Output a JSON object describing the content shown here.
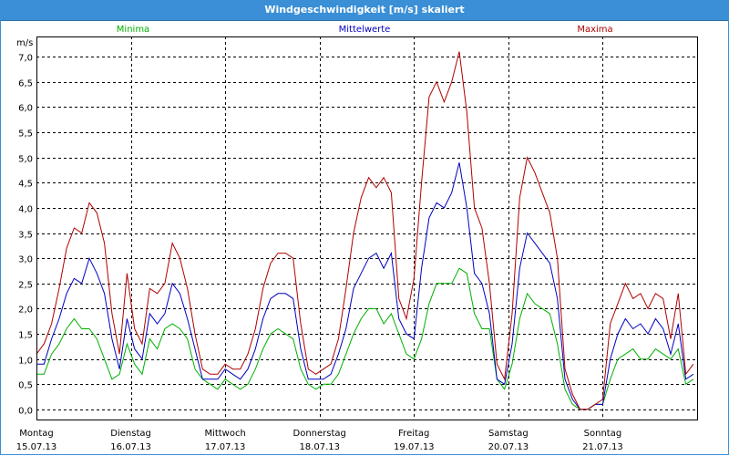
{
  "window": {
    "title": "Windgeschwindigkeit [m/s] skaliert"
  },
  "colors": {
    "minima": "#00b000",
    "mittelwerte": "#0000c0",
    "maxima": "#b00000",
    "grid": "#000000"
  },
  "chart_data": {
    "type": "line",
    "title": "Windgeschwindigkeit [m/s] skaliert",
    "ylabel": "m/s",
    "ylim": [
      -0.2,
      7.4
    ],
    "yticks": [
      0.0,
      0.5,
      1.0,
      1.5,
      2.0,
      2.5,
      3.0,
      3.5,
      4.0,
      4.5,
      5.0,
      5.5,
      6.0,
      6.5,
      7.0
    ],
    "ytick_labels": [
      "0,0",
      "0,5",
      "1,0",
      "1,5",
      "2,0",
      "2,5",
      "3,0",
      "3,5",
      "4,0",
      "4,5",
      "5,0",
      "5,5",
      "6,0",
      "6,5",
      "7,0"
    ],
    "grid": true,
    "legend_placement": "top",
    "xlim": [
      0,
      7
    ],
    "days": [
      {
        "weekday": "Montag",
        "date": "15.07.13"
      },
      {
        "weekday": "Dienstag",
        "date": "16.07.13"
      },
      {
        "weekday": "Mittwoch",
        "date": "17.07.13"
      },
      {
        "weekday": "Donnerstag",
        "date": "18.07.13"
      },
      {
        "weekday": "Freitag",
        "date": "19.07.13"
      },
      {
        "weekday": "Samstag",
        "date": "20.07.13"
      },
      {
        "weekday": "Sonntag",
        "date": "21.07.13"
      }
    ],
    "x": [
      0,
      0.08,
      0.16,
      0.24,
      0.32,
      0.4,
      0.48,
      0.56,
      0.64,
      0.72,
      0.8,
      0.88,
      0.96,
      1.04,
      1.12,
      1.2,
      1.28,
      1.36,
      1.44,
      1.52,
      1.6,
      1.68,
      1.76,
      1.84,
      1.92,
      2,
      2.08,
      2.16,
      2.24,
      2.32,
      2.4,
      2.48,
      2.56,
      2.64,
      2.72,
      2.8,
      2.88,
      2.96,
      3.04,
      3.12,
      3.2,
      3.28,
      3.36,
      3.44,
      3.52,
      3.6,
      3.68,
      3.76,
      3.84,
      3.92,
      4,
      4.08,
      4.16,
      4.24,
      4.32,
      4.4,
      4.48,
      4.56,
      4.64,
      4.72,
      4.8,
      4.88,
      4.96,
      5.04,
      5.12,
      5.2,
      5.28,
      5.36,
      5.44,
      5.52,
      5.6,
      5.68,
      5.76,
      5.84,
      5.92,
      6,
      6.08,
      6.16,
      6.24,
      6.32,
      6.4,
      6.48,
      6.56,
      6.64,
      6.72,
      6.8,
      6.88,
      6.96
    ],
    "series": [
      {
        "name": "Minima",
        "values": [
          0.7,
          0.7,
          1.1,
          1.3,
          1.6,
          1.8,
          1.6,
          1.6,
          1.4,
          1.0,
          0.6,
          0.7,
          1.3,
          0.9,
          0.7,
          1.4,
          1.2,
          1.6,
          1.7,
          1.6,
          1.4,
          0.8,
          0.6,
          0.5,
          0.4,
          0.6,
          0.5,
          0.4,
          0.5,
          0.8,
          1.2,
          1.5,
          1.6,
          1.5,
          1.4,
          0.8,
          0.5,
          0.4,
          0.5,
          0.5,
          0.7,
          1.1,
          1.5,
          1.8,
          2.0,
          2.0,
          1.7,
          1.9,
          1.5,
          1.1,
          1.0,
          1.4,
          2.1,
          2.5,
          2.5,
          2.5,
          2.8,
          2.7,
          1.9,
          1.6,
          1.6,
          0.6,
          0.4,
          0.9,
          1.8,
          2.3,
          2.1,
          2.0,
          1.9,
          1.3,
          0.4,
          0.1,
          0.0,
          0.0,
          0.1,
          0.1,
          0.6,
          1.0,
          1.1,
          1.2,
          1.0,
          1.0,
          1.2,
          1.1,
          1.0,
          1.2,
          0.5,
          0.6
        ]
      },
      {
        "name": "Mittelwerte",
        "values": [
          0.9,
          0.9,
          1.4,
          1.8,
          2.3,
          2.6,
          2.5,
          3.0,
          2.7,
          2.3,
          1.4,
          0.8,
          1.8,
          1.2,
          1.0,
          1.9,
          1.7,
          1.9,
          2.5,
          2.3,
          1.8,
          1.2,
          0.6,
          0.6,
          0.6,
          0.8,
          0.7,
          0.6,
          0.8,
          1.2,
          1.8,
          2.2,
          2.3,
          2.3,
          2.2,
          1.2,
          0.6,
          0.6,
          0.6,
          0.7,
          1.1,
          1.6,
          2.4,
          2.7,
          3.0,
          3.1,
          2.8,
          3.1,
          1.8,
          1.5,
          1.4,
          2.8,
          3.8,
          4.1,
          4.0,
          4.3,
          4.9,
          4.0,
          2.7,
          2.5,
          1.9,
          0.6,
          0.5,
          1.3,
          2.8,
          3.5,
          3.3,
          3.1,
          2.9,
          2.2,
          0.6,
          0.2,
          0.0,
          0.0,
          0.1,
          0.1,
          1.0,
          1.5,
          1.8,
          1.6,
          1.7,
          1.5,
          1.8,
          1.6,
          1.1,
          1.7,
          0.6,
          0.7
        ]
      },
      {
        "name": "Maxima",
        "values": [
          1.1,
          1.3,
          1.7,
          2.4,
          3.2,
          3.6,
          3.5,
          4.1,
          3.9,
          3.3,
          1.9,
          1.1,
          2.7,
          1.6,
          1.3,
          2.4,
          2.3,
          2.5,
          3.3,
          3.0,
          2.4,
          1.5,
          0.8,
          0.7,
          0.7,
          0.9,
          0.8,
          0.8,
          1.1,
          1.6,
          2.4,
          2.9,
          3.1,
          3.1,
          3.0,
          1.7,
          0.8,
          0.7,
          0.8,
          0.9,
          1.4,
          2.4,
          3.5,
          4.2,
          4.6,
          4.4,
          4.6,
          4.3,
          2.2,
          1.8,
          2.6,
          4.5,
          6.2,
          6.5,
          6.1,
          6.5,
          7.1,
          5.9,
          4.0,
          3.6,
          2.5,
          0.9,
          0.6,
          1.9,
          4.2,
          5.0,
          4.7,
          4.3,
          3.9,
          3.0,
          0.8,
          0.3,
          0.0,
          0.0,
          0.1,
          0.2,
          1.7,
          2.1,
          2.5,
          2.2,
          2.3,
          2.0,
          2.3,
          2.2,
          1.4,
          2.3,
          0.7,
          0.9
        ]
      }
    ]
  }
}
